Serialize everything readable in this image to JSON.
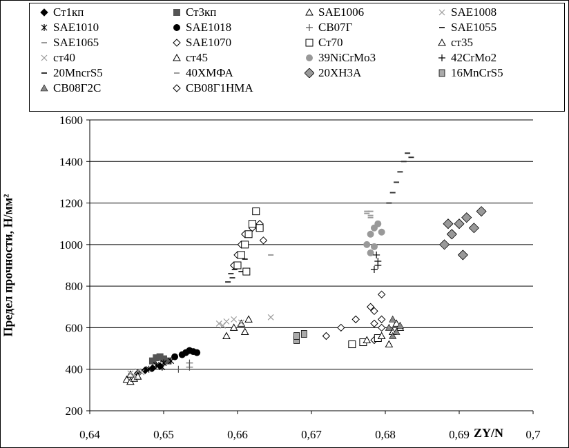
{
  "chart_data": {
    "type": "scatter",
    "ylabel": "Предел прочности, Н/мм²",
    "xlabel": "ZY/N",
    "xlim": [
      0.64,
      0.7
    ],
    "ylim": [
      200,
      1600
    ],
    "x_ticks": [
      "0,64",
      "0,65",
      "0,66",
      "0,67",
      "0,68",
      "0,69",
      "0,7"
    ],
    "y_ticks": [
      "200",
      "400",
      "600",
      "800",
      "1000",
      "1200",
      "1400",
      "1600"
    ],
    "grid": "horizontal",
    "legend_position": "top",
    "series": [
      {
        "name": "Ст1кп",
        "marker": "diamond-filled",
        "color": "#000000",
        "points": [
          [
            0.6465,
            380
          ],
          [
            0.6475,
            395
          ],
          [
            0.6485,
            405
          ],
          [
            0.6495,
            415
          ]
        ]
      },
      {
        "name": "Ст3кп",
        "marker": "square-filled",
        "color": "#555555",
        "points": [
          [
            0.6485,
            440
          ],
          [
            0.649,
            455
          ],
          [
            0.6495,
            460
          ],
          [
            0.65,
            450
          ],
          [
            0.6505,
            440
          ]
        ]
      },
      {
        "name": "SAE1006",
        "marker": "triangle-open",
        "color": "#000000",
        "points": [
          [
            0.645,
            350
          ],
          [
            0.6455,
            340
          ],
          [
            0.646,
            355
          ],
          [
            0.6465,
            365
          ],
          [
            0.6455,
            375
          ]
        ]
      },
      {
        "name": "SAE1008",
        "marker": "x",
        "color": "#999999",
        "points": [
          [
            0.6455,
            380
          ],
          [
            0.646,
            370
          ],
          [
            0.6465,
            390
          ],
          [
            0.647,
            385
          ],
          [
            0.6575,
            620
          ],
          [
            0.658,
            610
          ],
          [
            0.6645,
            650
          ]
        ]
      },
      {
        "name": "SAE1010",
        "marker": "star",
        "color": "#000000",
        "points": [
          [
            0.648,
            400
          ],
          [
            0.649,
            420
          ],
          [
            0.65,
            430
          ],
          [
            0.651,
            440
          ],
          [
            0.6498,
            410
          ]
        ]
      },
      {
        "name": "SAE1018",
        "marker": "circle-filled",
        "color": "#000000",
        "points": [
          [
            0.6515,
            460
          ],
          [
            0.6525,
            470
          ],
          [
            0.653,
            480
          ],
          [
            0.6535,
            490
          ],
          [
            0.654,
            485
          ],
          [
            0.6545,
            480
          ]
        ]
      },
      {
        "name": "СВ07Г",
        "marker": "plus",
        "color": "#555555",
        "points": [
          [
            0.652,
            400
          ],
          [
            0.6535,
            410
          ],
          [
            0.6535,
            430
          ]
        ]
      },
      {
        "name": "SAE1055",
        "marker": "dash",
        "color": "#333333",
        "points": [
          [
            0.6587,
            820
          ],
          [
            0.6591,
            860
          ],
          [
            0.6596,
            880
          ],
          [
            0.66,
            900
          ],
          [
            0.6605,
            870
          ],
          [
            0.6593,
            840
          ],
          [
            0.661,
            930
          ]
        ]
      },
      {
        "name": "SAE1065",
        "marker": "dash",
        "color": "#999999",
        "points": [
          [
            0.6775,
            1150
          ],
          [
            0.678,
            1130
          ],
          [
            0.678,
            1160
          ],
          [
            0.6645,
            950
          ]
        ]
      },
      {
        "name": "SAE1070",
        "marker": "diamond-open",
        "color": "#000000",
        "points": [
          [
            0.6595,
            900
          ],
          [
            0.66,
            950
          ],
          [
            0.6605,
            1000
          ],
          [
            0.661,
            1050
          ],
          [
            0.662,
            1080
          ],
          [
            0.663,
            1100
          ],
          [
            0.6635,
            1020
          ],
          [
            0.672,
            560
          ],
          [
            0.674,
            600
          ],
          [
            0.676,
            640
          ],
          [
            0.678,
            700
          ],
          [
            0.6795,
            760
          ],
          [
            0.6785,
            540
          ]
        ]
      },
      {
        "name": "Ст70",
        "marker": "square-open",
        "color": "#000000",
        "points": [
          [
            0.66,
            900
          ],
          [
            0.6605,
            950
          ],
          [
            0.661,
            1000
          ],
          [
            0.6615,
            1050
          ],
          [
            0.662,
            1100
          ],
          [
            0.6625,
            1160
          ],
          [
            0.663,
            1080
          ],
          [
            0.6612,
            870
          ],
          [
            0.6755,
            520
          ],
          [
            0.677,
            530
          ],
          [
            0.679,
            550
          ]
        ]
      },
      {
        "name": "ст35",
        "marker": "triangle-open",
        "color": "#000000",
        "points": [
          [
            0.6595,
            600
          ],
          [
            0.6605,
            620
          ],
          [
            0.6615,
            640
          ],
          [
            0.6585,
            560
          ],
          [
            0.661,
            580
          ]
        ]
      },
      {
        "name": "ст40",
        "marker": "x",
        "color": "#999999",
        "points": [
          [
            0.6585,
            630
          ],
          [
            0.6595,
            640
          ],
          [
            0.6605,
            625
          ]
        ]
      },
      {
        "name": "ст45",
        "marker": "triangle-open",
        "color": "#000000",
        "points": [
          [
            0.6775,
            540
          ],
          [
            0.6795,
            560
          ],
          [
            0.681,
            580
          ],
          [
            0.6815,
            620
          ],
          [
            0.682,
            600
          ],
          [
            0.6805,
            520
          ]
        ]
      },
      {
        "name": "39NiCrMo3",
        "marker": "circle-filled",
        "color": "#999999",
        "points": [
          [
            0.6775,
            1000
          ],
          [
            0.678,
            1050
          ],
          [
            0.6785,
            1080
          ],
          [
            0.679,
            1100
          ],
          [
            0.6795,
            1060
          ],
          [
            0.678,
            960
          ],
          [
            0.6785,
            990
          ]
        ]
      },
      {
        "name": "42CrMo2",
        "marker": "plus",
        "color": "#000000",
        "points": [
          [
            0.6785,
            880
          ],
          [
            0.679,
            900
          ],
          [
            0.679,
            920
          ],
          [
            0.6788,
            950
          ]
        ]
      },
      {
        "name": "20MncrS5",
        "marker": "dash",
        "color": "#333333",
        "points": [
          [
            0.6805,
            1200
          ],
          [
            0.681,
            1250
          ],
          [
            0.6815,
            1300
          ],
          [
            0.682,
            1350
          ],
          [
            0.6825,
            1400
          ],
          [
            0.683,
            1440
          ],
          [
            0.6835,
            1420
          ]
        ]
      },
      {
        "name": "40ХМФА",
        "marker": "dash",
        "color": "#999999",
        "points": [
          [
            0.6775,
            1160
          ],
          [
            0.678,
            1140
          ]
        ]
      },
      {
        "name": "20ХН3А",
        "marker": "diamond-filled-gray",
        "color": "#999999",
        "points": [
          [
            0.688,
            1000
          ],
          [
            0.689,
            1050
          ],
          [
            0.69,
            1100
          ],
          [
            0.691,
            1130
          ],
          [
            0.692,
            1080
          ],
          [
            0.693,
            1160
          ],
          [
            0.6905,
            950
          ],
          [
            0.6885,
            1100
          ]
        ]
      },
      {
        "name": "16MnCrS5",
        "marker": "square-filled-gray",
        "color": "#888888",
        "points": [
          [
            0.668,
            540
          ],
          [
            0.668,
            560
          ],
          [
            0.669,
            570
          ]
        ]
      },
      {
        "name": "СВ08Г2С",
        "marker": "triangle-filled",
        "color": "#888888",
        "points": [
          [
            0.6805,
            600
          ],
          [
            0.681,
            640
          ],
          [
            0.682,
            610
          ],
          [
            0.681,
            560
          ],
          [
            0.6815,
            580
          ]
        ]
      },
      {
        "name": "СВ08Г1НМА",
        "marker": "diamond-open",
        "color": "#000000",
        "points": [
          [
            0.6785,
            620
          ],
          [
            0.6795,
            640
          ],
          [
            0.6785,
            680
          ],
          [
            0.6795,
            600
          ]
        ]
      }
    ]
  }
}
